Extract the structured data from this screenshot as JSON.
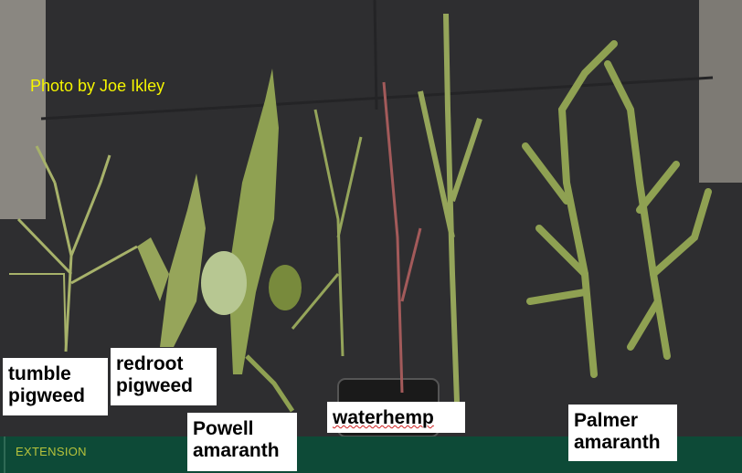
{
  "photo": {
    "credit": "Photo by Joe Ikley",
    "labels": [
      {
        "line1": "tumble",
        "line2": "pigweed"
      },
      {
        "line1": "redroot",
        "line2": "pigweed"
      },
      {
        "line1": "Powell",
        "line2": "amaranth"
      },
      {
        "line1": "waterhemp",
        "line2": ""
      },
      {
        "line1": "Palmer",
        "line2": "amaranth"
      }
    ]
  },
  "footer": {
    "brand": "EXTENSION"
  },
  "colors": {
    "mat": "#2b2b2d",
    "footer": "#0d4a37",
    "brand_text": "#b6c23c",
    "credit_text": "#f5f500",
    "plant": "#9aac5a"
  }
}
